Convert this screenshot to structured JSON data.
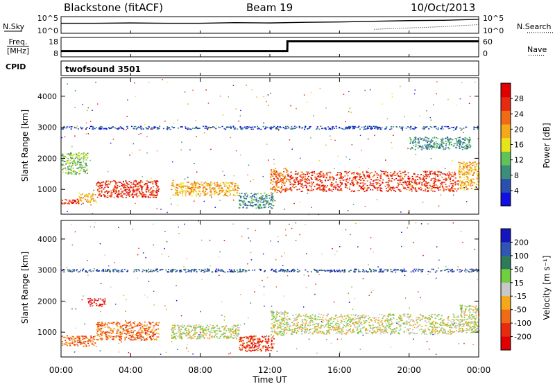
{
  "header": {
    "station": "Blackstone (fitACF)",
    "beam": "Beam 19",
    "date": "10/Oct/2013"
  },
  "top_panels": {
    "nsky_label": "N.Sky",
    "nsearch_label": "N.Search",
    "freq_label_1": "Freq.",
    "freq_label_2": "[MHz]",
    "nave_label": "Nave",
    "cpid_label": "CPID",
    "cpid_value": "twofsound 3501",
    "left_ticks_noise": [
      "10^5",
      "10^0"
    ],
    "right_ticks_noise": [
      "10^5",
      "10^0"
    ],
    "left_ticks_freq": [
      "18",
      "8"
    ],
    "right_ticks_freq": [
      "60",
      "0"
    ]
  },
  "x_axis": {
    "label": "Time UT",
    "ticks": [
      "00:00",
      "04:00",
      "08:00",
      "12:00",
      "16:00",
      "20:00",
      "00:00"
    ]
  },
  "y_axis": {
    "label": "Slant Range [km]",
    "ticks": [
      "1000",
      "2000",
      "3000",
      "4000"
    ]
  },
  "colorbars": {
    "power": {
      "label": "Power [dB]",
      "ticks": [
        "4",
        "8",
        "12",
        "16",
        "20",
        "24",
        "28"
      ]
    },
    "velocity": {
      "label": "Velocity [m s⁻¹]",
      "ticks": [
        "200",
        "100",
        "50",
        "15",
        "-15",
        "-50",
        "-100",
        "-200"
      ]
    }
  },
  "colors": {
    "power_scale": [
      "#1010e0",
      "#2a4fb0",
      "#3a8f7a",
      "#62c25a",
      "#e8e41a",
      "#f5a81a",
      "#ef6b16",
      "#e82a10",
      "#e00000"
    ],
    "velocity_scale": [
      "#1515c0",
      "#2f56b5",
      "#2e7a5a",
      "#6fcf3f",
      "#c8c8c8",
      "#f5a81a",
      "#ef6b16",
      "#e82a10",
      "#e00000"
    ]
  },
  "chart_data": [
    {
      "type": "line",
      "title": "N.Sky / N.Search",
      "x_hours": [
        0,
        2,
        4,
        6,
        8,
        10,
        12,
        14,
        16,
        18,
        20,
        22,
        24
      ],
      "series": [
        {
          "name": "N.Sky",
          "values": [
            3.0,
            3.0,
            3.1,
            3.0,
            3.0,
            3.2,
            3.1,
            3.3,
            3.4,
            3.6,
            3.8,
            3.9,
            4.2
          ]
        },
        {
          "name": "N.Search",
          "values": [
            null,
            null,
            null,
            null,
            null,
            null,
            null,
            null,
            null,
            1.2,
            1.6,
            2.0,
            2.6
          ]
        }
      ],
      "ylim": [
        0,
        5
      ]
    },
    {
      "type": "line",
      "title": "Freq. / Nave",
      "x_hours": [
        0,
        13,
        13.01,
        24
      ],
      "series": [
        {
          "name": "Freq. [MHz]",
          "values": [
            11,
            11,
            16,
            16
          ]
        }
      ],
      "ylim": [
        8,
        18
      ]
    },
    {
      "type": "heatmap",
      "title": "Power [dB]",
      "xlabel": "Time UT",
      "ylabel": "Slant Range [km]",
      "xlim": [
        0,
        24
      ],
      "ylim": [
        200,
        4600
      ],
      "bands": [
        {
          "t": [
            0.0,
            1.0
          ],
          "r": [
            550,
            700
          ],
          "power": 24
        },
        {
          "t": [
            1.0,
            2.0
          ],
          "r": [
            600,
            900
          ],
          "power": 20
        },
        {
          "t": [
            2.0,
            5.6
          ],
          "r": [
            750,
            1300
          ],
          "power": 26
        },
        {
          "t": [
            6.3,
            10.2
          ],
          "r": [
            800,
            1250
          ],
          "power": 18
        },
        {
          "t": [
            10.2,
            12.2
          ],
          "r": [
            400,
            900
          ],
          "power": 8
        },
        {
          "t": [
            12.0,
            13.0
          ],
          "r": [
            900,
            1700
          ],
          "power": 22
        },
        {
          "t": [
            13.0,
            22.8
          ],
          "r": [
            950,
            1600
          ],
          "power": 24
        },
        {
          "t": [
            22.8,
            24.0
          ],
          "r": [
            1000,
            1900
          ],
          "power": 20
        },
        {
          "t": [
            0.0,
            1.5
          ],
          "r": [
            1500,
            2200
          ],
          "power": 12
        },
        {
          "t": [
            0.0,
            24.0
          ],
          "r": [
            2950,
            3050
          ],
          "power": 6
        },
        {
          "t": [
            20.0,
            23.5
          ],
          "r": [
            2300,
            2700
          ],
          "power": 10
        }
      ]
    },
    {
      "type": "heatmap",
      "title": "Velocity [m s⁻¹]",
      "xlabel": "Time UT",
      "ylabel": "Slant Range [km]",
      "xlim": [
        0,
        24
      ],
      "ylim": [
        200,
        4600
      ],
      "bands": [
        {
          "t": [
            0.0,
            2.0
          ],
          "r": [
            550,
            900
          ],
          "velocity": -50
        },
        {
          "t": [
            2.0,
            5.6
          ],
          "r": [
            750,
            1350
          ],
          "velocity": -50
        },
        {
          "t": [
            1.5,
            2.5
          ],
          "r": [
            1850,
            2100
          ],
          "velocity": -200
        },
        {
          "t": [
            6.3,
            10.2
          ],
          "r": [
            800,
            1250
          ],
          "velocity": 0
        },
        {
          "t": [
            10.2,
            12.2
          ],
          "r": [
            400,
            900
          ],
          "velocity": -100
        },
        {
          "t": [
            12.0,
            13.0
          ],
          "r": [
            900,
            1700
          ],
          "velocity": 0
        },
        {
          "t": [
            13.0,
            22.8
          ],
          "r": [
            950,
            1600
          ],
          "velocity": 0
        },
        {
          "t": [
            22.8,
            24.0
          ],
          "r": [
            1000,
            1900
          ],
          "velocity": 0
        },
        {
          "t": [
            0.0,
            24.0
          ],
          "r": [
            2950,
            3050
          ],
          "velocity": 100
        }
      ]
    }
  ]
}
